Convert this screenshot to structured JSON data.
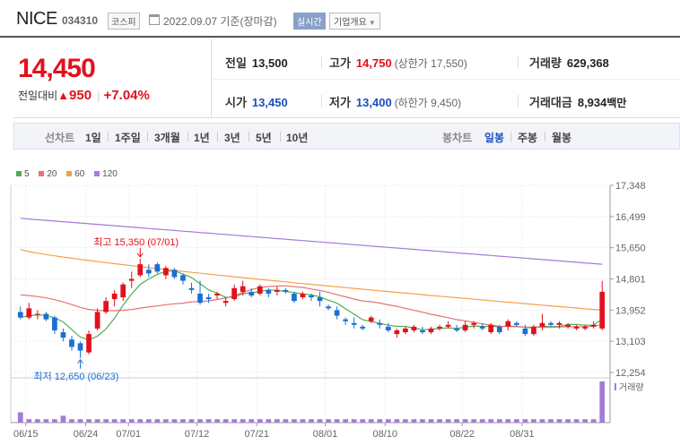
{
  "header": {
    "stock_name": "NICE",
    "stock_code": "034310",
    "market": "코스피",
    "date_text": "2022.09.07 기준(장마감)",
    "realtime_label": "실시간",
    "company_info_label": "기업개요"
  },
  "price": {
    "current": "14,450",
    "change_label": "전일대비",
    "change_arrow": "▲",
    "change_value": "950",
    "change_sep": "|",
    "change_pct": "+7.04%"
  },
  "stats": {
    "prev_close": {
      "label": "전일",
      "value": "13,500"
    },
    "high": {
      "label": "고가",
      "value": "14,750",
      "sub": "(상한가 17,550)"
    },
    "volume": {
      "label": "거래량",
      "value": "629,368"
    },
    "open": {
      "label": "시가",
      "value": "13,450"
    },
    "low": {
      "label": "저가",
      "value": "13,400",
      "sub": "(하한가 9,450)"
    },
    "amount": {
      "label": "거래대금",
      "value": "8,934",
      "unit": "백만"
    }
  },
  "toolbar": {
    "line_chart_label": "선차트",
    "periods": [
      "1일",
      "1주일",
      "3개월",
      "1년",
      "3년",
      "5년",
      "10년"
    ],
    "candle_chart_label": "봉차트",
    "candle_periods": [
      "일봉",
      "주봉",
      "월봉"
    ],
    "active_candle": "일봉"
  },
  "legend": [
    {
      "label": "5",
      "color": "#4caf50"
    },
    {
      "label": "20",
      "color": "#e57373"
    },
    {
      "label": "60",
      "color": "#f5a04a"
    },
    {
      "label": "120",
      "color": "#a47bd8"
    }
  ],
  "colors": {
    "up": "#e2101e",
    "down": "#1b6fd6"
  },
  "chart_data": {
    "type": "candlestick",
    "y_ticks": [
      "17,348",
      "16,499",
      "15,650",
      "14,801",
      "13,952",
      "13,103",
      "12,254"
    ],
    "y_min": 12254,
    "y_max": 17348,
    "x_ticks": [
      "06/15",
      "06/24",
      "07/01",
      "07/12",
      "07/21",
      "08/01",
      "08/10",
      "08/22",
      "08/31"
    ],
    "max_annotation": "최고 15,350 (07/01)",
    "min_annotation": "최저 12,650 (06/23)",
    "volume_label": "거래량",
    "candles": [
      [
        13900,
        14050,
        13700,
        13750
      ],
      [
        13750,
        14150,
        13700,
        14000
      ],
      [
        13850,
        13950,
        13700,
        13850
      ],
      [
        13850,
        13900,
        13650,
        13700
      ],
      [
        13750,
        13800,
        13300,
        13400
      ],
      [
        13350,
        13450,
        13100,
        13200
      ],
      [
        13150,
        13250,
        12850,
        12950
      ],
      [
        13050,
        13100,
        12650,
        12850
      ],
      [
        12800,
        13400,
        12750,
        13300
      ],
      [
        13450,
        14000,
        13400,
        13900
      ],
      [
        13900,
        14300,
        13850,
        14200
      ],
      [
        14250,
        14500,
        14050,
        14400
      ],
      [
        14300,
        14700,
        14200,
        14650
      ],
      [
        14750,
        15000,
        14550,
        14800
      ],
      [
        14900,
        15350,
        14850,
        15200
      ],
      [
        15050,
        15200,
        14850,
        14950
      ],
      [
        15200,
        15250,
        14950,
        15000
      ],
      [
        14900,
        15150,
        14800,
        15100
      ],
      [
        15050,
        15100,
        14800,
        14850
      ],
      [
        14900,
        14950,
        14650,
        14750
      ],
      [
        14550,
        14700,
        14400,
        14500
      ],
      [
        14400,
        14750,
        14100,
        14150
      ],
      [
        14300,
        14400,
        14150,
        14250
      ],
      [
        14350,
        14450,
        14250,
        14400
      ],
      [
        14150,
        14300,
        14050,
        14200
      ],
      [
        14250,
        14650,
        14200,
        14550
      ],
      [
        14450,
        14750,
        14350,
        14600
      ],
      [
        14450,
        14550,
        14300,
        14350
      ],
      [
        14400,
        14650,
        14350,
        14600
      ],
      [
        14500,
        14550,
        14300,
        14400
      ],
      [
        14450,
        14600,
        14350,
        14500
      ],
      [
        14500,
        14550,
        14400,
        14450
      ],
      [
        14400,
        14450,
        14150,
        14200
      ],
      [
        14300,
        14450,
        14250,
        14400
      ],
      [
        14350,
        14400,
        14200,
        14300
      ],
      [
        14300,
        14450,
        14050,
        14200
      ],
      [
        14050,
        14100,
        13950,
        14000
      ],
      [
        13950,
        14050,
        13700,
        13800
      ],
      [
        13700,
        13750,
        13550,
        13650
      ],
      [
        13600,
        13750,
        13450,
        13550
      ],
      [
        13500,
        13550,
        13400,
        13450
      ],
      [
        13650,
        13800,
        13600,
        13750
      ],
      [
        13600,
        13700,
        13450,
        13550
      ],
      [
        13500,
        13600,
        13350,
        13400
      ],
      [
        13300,
        13450,
        13200,
        13400
      ],
      [
        13350,
        13500,
        13300,
        13450
      ],
      [
        13400,
        13550,
        13350,
        13500
      ],
      [
        13400,
        13500,
        13300,
        13350
      ],
      [
        13350,
        13500,
        13300,
        13450
      ],
      [
        13450,
        13550,
        13400,
        13500
      ],
      [
        13500,
        13650,
        13450,
        13550
      ],
      [
        13450,
        13550,
        13350,
        13400
      ],
      [
        13400,
        13650,
        13350,
        13550
      ],
      [
        13550,
        13650,
        13450,
        13600
      ],
      [
        13500,
        13600,
        13400,
        13450
      ],
      [
        13350,
        13600,
        13300,
        13550
      ],
      [
        13500,
        13550,
        13300,
        13350
      ],
      [
        13500,
        13700,
        13400,
        13650
      ],
      [
        13600,
        13650,
        13500,
        13550
      ],
      [
        13450,
        13550,
        13250,
        13300
      ],
      [
        13300,
        13550,
        13250,
        13500
      ],
      [
        13500,
        13850,
        13400,
        13600
      ],
      [
        13600,
        13650,
        13500,
        13550
      ],
      [
        13550,
        13650,
        13450,
        13600
      ],
      [
        13500,
        13600,
        13450,
        13550
      ],
      [
        13450,
        13550,
        13400,
        13500
      ],
      [
        13450,
        13550,
        13400,
        13500
      ],
      [
        13500,
        13650,
        13450,
        13550
      ],
      [
        13450,
        14750,
        13400,
        14450
      ]
    ],
    "volumes": [
      3,
      1,
      1,
      1,
      1,
      2,
      1,
      1,
      1,
      1,
      1,
      1,
      1,
      1,
      1,
      1,
      1,
      1,
      1,
      1,
      1,
      1,
      1,
      1,
      1,
      1,
      1,
      1,
      1,
      1,
      1,
      1,
      1,
      1,
      1,
      1,
      1,
      1,
      1,
      1,
      1,
      1,
      1,
      1,
      1,
      1,
      1,
      1,
      1,
      1,
      1,
      1,
      1,
      1,
      1,
      1,
      1,
      1,
      1,
      1,
      1,
      1,
      1,
      1,
      1,
      1,
      1,
      1,
      12
    ]
  }
}
